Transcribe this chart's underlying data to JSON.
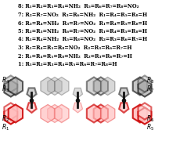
{
  "background_color": "#ffffff",
  "legend_lines": [
    "1: R₁=R₂=R₃=R₄=R₅=R₆=R₇=R₈=H",
    "2: R₁=R₄=R₅=R₈=NH₂  R₂=R₃=R₆=R₇=H",
    "3: R₁=R₄=R₅=R₈=NO₂  R₂=R₃=R₆=R₇=H",
    "4: R₁=R₄=NH₂  R₅=R₈=NO₂  R₂=R₃=R₆=R₇=H",
    "5: R₂=R₃=NH₂  R₆=R₇=NO₂  R₁=R₄=R₅=R₈=H",
    "6: R₂=R₄=NH₂  R₃=R₇=NO₂  R₁=R₄=R₅=R₈=H",
    "7: R₂=R₇=NO₂  R₃=R₆=NH₂  R₁=R₄=R₅=R₈=H",
    "8: R₁=R₂=R₃=R₄=NH₂  R₅=R₆=R₇=R₈=NO₂"
  ],
  "legend_fontsize": 4.8,
  "red_dark": "#cc0000",
  "red_mid": "#ee6666",
  "red_light": "#ffbbbb",
  "blk_dark": "#111111",
  "blk_mid": "#555555",
  "blk_light": "#aaaaaa"
}
